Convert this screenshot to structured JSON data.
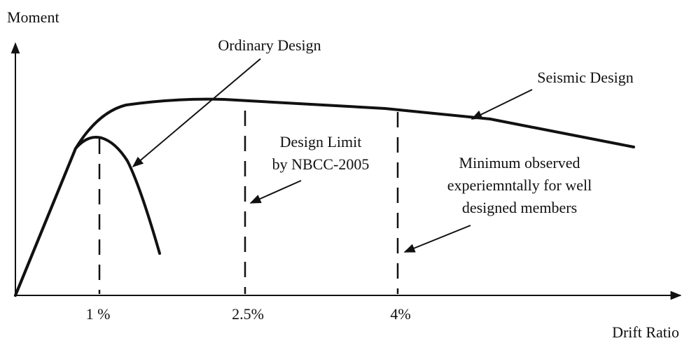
{
  "axes": {
    "y_label": "Moment",
    "x_label": "Drift Ratio",
    "x_ticks": [
      "1 %",
      "2.5%",
      "4%"
    ]
  },
  "curves": {
    "ordinary": "Ordinary Design",
    "seismic": "Seismic Design"
  },
  "annotations": {
    "design_limit": [
      "Design Limit",
      "by NBCC-2005"
    ],
    "minimum_observed": [
      "Minimum observed",
      "experiemntally for well",
      "designed members"
    ]
  }
}
